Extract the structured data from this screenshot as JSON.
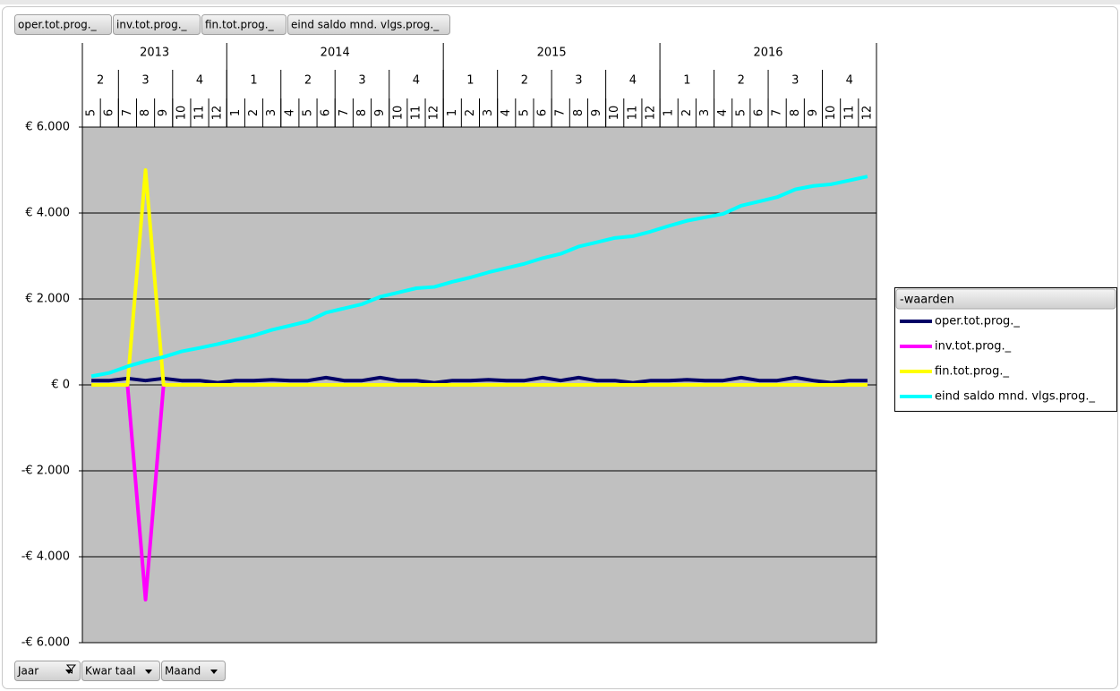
{
  "chart_data": {
    "type": "line",
    "field_buttons_top": [
      "oper.tot.prog._",
      "inv.tot.prog._",
      "fin.tot.prog._",
      "eind saldo mnd. vlgs.prog._"
    ],
    "field_buttons_bottom": [
      "Jaar",
      "Kwar taal",
      "Maand"
    ],
    "legend_title": "-waarden",
    "legend": "right",
    "grid": true,
    "years": [
      {
        "label": "2013",
        "quarters": [
          {
            "label": "2",
            "months": [
              "5",
              "6"
            ]
          },
          {
            "label": "3",
            "months": [
              "7",
              "8",
              "9"
            ]
          },
          {
            "label": "4",
            "months": [
              "10",
              "11",
              "12"
            ]
          }
        ]
      },
      {
        "label": "2014",
        "quarters": [
          {
            "label": "1",
            "months": [
              "1",
              "2",
              "3"
            ]
          },
          {
            "label": "2",
            "months": [
              "4",
              "5",
              "6"
            ]
          },
          {
            "label": "3",
            "months": [
              "7",
              "8",
              "9"
            ]
          },
          {
            "label": "4",
            "months": [
              "10",
              "11",
              "12"
            ]
          }
        ]
      },
      {
        "label": "2015",
        "quarters": [
          {
            "label": "1",
            "months": [
              "1",
              "2",
              "3"
            ]
          },
          {
            "label": "2",
            "months": [
              "4",
              "5",
              "6"
            ]
          },
          {
            "label": "3",
            "months": [
              "7",
              "8",
              "9"
            ]
          },
          {
            "label": "4",
            "months": [
              "10",
              "11",
              "12"
            ]
          }
        ]
      },
      {
        "label": "2016",
        "quarters": [
          {
            "label": "1",
            "months": [
              "1",
              "2",
              "3"
            ]
          },
          {
            "label": "2",
            "months": [
              "4",
              "5",
              "6"
            ]
          },
          {
            "label": "3",
            "months": [
              "7",
              "8",
              "9"
            ]
          },
          {
            "label": "4",
            "months": [
              "10",
              "11",
              "12"
            ]
          }
        ]
      }
    ],
    "ylim": [
      -6000,
      6000
    ],
    "yticks": [
      {
        "value": -6000,
        "label": "-€ 6.000"
      },
      {
        "value": -4000,
        "label": "-€ 4.000"
      },
      {
        "value": -2000,
        "label": "-€ 2.000"
      },
      {
        "value": 0,
        "label": "€ 0"
      },
      {
        "value": 2000,
        "label": "€ 2.000"
      },
      {
        "value": 4000,
        "label": "€ 4.000"
      },
      {
        "value": 6000,
        "label": "€ 6.000"
      }
    ],
    "series": [
      {
        "name": "oper.tot.prog._",
        "color": "#000066",
        "values": [
          100,
          100,
          150,
          100,
          150,
          100,
          100,
          50,
          100,
          100,
          120,
          100,
          100,
          170,
          100,
          100,
          170,
          100,
          100,
          50,
          100,
          100,
          120,
          100,
          100,
          170,
          100,
          170,
          100,
          100,
          50,
          100,
          100,
          120,
          100,
          100,
          170,
          100,
          100,
          170,
          100,
          50,
          100,
          100
        ]
      },
      {
        "name": "inv.tot.prog._",
        "color": "#ff00ff",
        "values": [
          0,
          0,
          0,
          -5000,
          0,
          0,
          0,
          0,
          0,
          0,
          0,
          0,
          0,
          0,
          0,
          0,
          0,
          0,
          0,
          0,
          0,
          0,
          0,
          0,
          0,
          0,
          0,
          0,
          0,
          0,
          0,
          0,
          0,
          0,
          0,
          0,
          0,
          0,
          0,
          0,
          0,
          0,
          0,
          0
        ]
      },
      {
        "name": "fin.tot.prog._",
        "color": "#ffff00",
        "values": [
          0,
          0,
          0,
          5000,
          0,
          0,
          0,
          0,
          0,
          0,
          0,
          0,
          0,
          0,
          0,
          0,
          0,
          0,
          0,
          0,
          0,
          0,
          0,
          0,
          0,
          0,
          0,
          0,
          0,
          0,
          0,
          0,
          0,
          0,
          0,
          0,
          0,
          0,
          0,
          0,
          0,
          0,
          0,
          0
        ]
      },
      {
        "name": "eind saldo mnd. vlgs.prog._",
        "color": "#00ffff",
        "values": [
          200,
          280,
          430,
          550,
          650,
          780,
          860,
          950,
          1050,
          1150,
          1280,
          1380,
          1480,
          1680,
          1780,
          1880,
          2050,
          2150,
          2250,
          2280,
          2400,
          2500,
          2620,
          2720,
          2820,
          2950,
          3050,
          3220,
          3320,
          3420,
          3460,
          3570,
          3700,
          3820,
          3900,
          3980,
          4170,
          4270,
          4370,
          4550,
          4630,
          4670,
          4760,
          4850
        ]
      }
    ]
  }
}
